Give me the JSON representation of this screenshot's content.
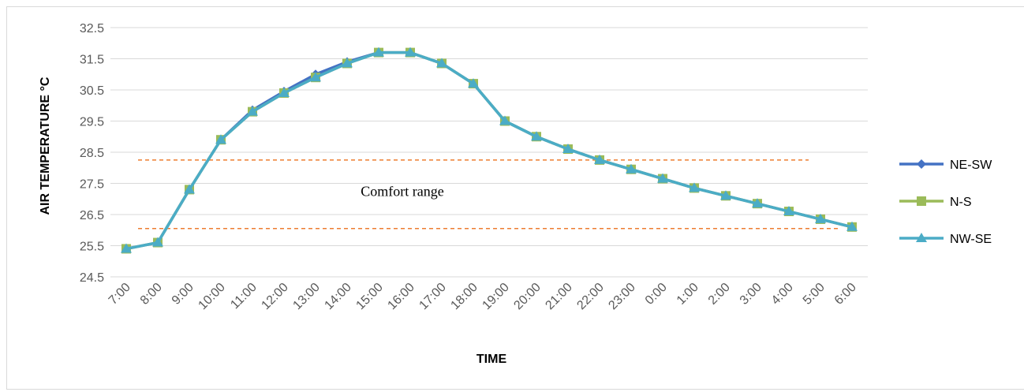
{
  "chart_data": {
    "type": "line",
    "xlabel": "TIME",
    "ylabel": "AIR TEMPERATURE °C",
    "ylim": [
      24.5,
      32.5
    ],
    "yticks": [
      24.5,
      25.5,
      26.5,
      27.5,
      28.5,
      29.5,
      30.5,
      31.5,
      32.5
    ],
    "ytick_labels": [
      "24.5",
      "25.5",
      "26.5",
      "27.5",
      "28.5",
      "29.5",
      "30.5",
      "31.5",
      "32.5"
    ],
    "grid": "horizontal",
    "legend_position": "right",
    "categories": [
      "7:00",
      "8:00",
      "9:00",
      "10:00",
      "11:00",
      "12:00",
      "13:00",
      "14:00",
      "15:00",
      "16:00",
      "17:00",
      "18:00",
      "19:00",
      "20:00",
      "21:00",
      "22:00",
      "23:00",
      "0:00",
      "1:00",
      "2:00",
      "3:00",
      "4:00",
      "5:00",
      "6:00"
    ],
    "series": [
      {
        "name": "NE-SW",
        "color": "#4472C4",
        "marker": "diamond",
        "values": [
          25.4,
          25.6,
          27.3,
          28.9,
          29.85,
          30.45,
          31.0,
          31.4,
          31.7,
          31.7,
          31.35,
          30.7,
          29.5,
          29.0,
          28.6,
          28.25,
          27.95,
          27.65,
          27.35,
          27.1,
          26.85,
          26.6,
          26.35,
          26.1
        ]
      },
      {
        "name": "N-S",
        "color": "#9BBB59",
        "marker": "square",
        "values": [
          25.4,
          25.6,
          27.3,
          28.9,
          29.8,
          30.4,
          30.9,
          31.35,
          31.7,
          31.7,
          31.35,
          30.7,
          29.5,
          29.0,
          28.6,
          28.25,
          27.95,
          27.65,
          27.35,
          27.1,
          26.85,
          26.6,
          26.35,
          26.1
        ]
      },
      {
        "name": "NW-SE",
        "color": "#4BACC6",
        "marker": "triangle",
        "values": [
          25.4,
          25.6,
          27.3,
          28.9,
          29.8,
          30.4,
          30.9,
          31.35,
          31.7,
          31.7,
          31.35,
          30.7,
          29.5,
          29.0,
          28.6,
          28.25,
          27.95,
          27.65,
          27.35,
          27.1,
          26.85,
          26.6,
          26.35,
          26.1
        ]
      }
    ],
    "reference_lines": [
      {
        "value": 28.25,
        "from": "8:00",
        "to": "4:00",
        "style": "dashed",
        "color": "#ED7D31"
      },
      {
        "value": 26.05,
        "from": "8:00",
        "to": "5:00",
        "style": "dashed",
        "color": "#ED7D31"
      }
    ],
    "annotations": [
      {
        "text": "Comfort range",
        "x": "16:00",
        "y": 27.0
      }
    ]
  }
}
